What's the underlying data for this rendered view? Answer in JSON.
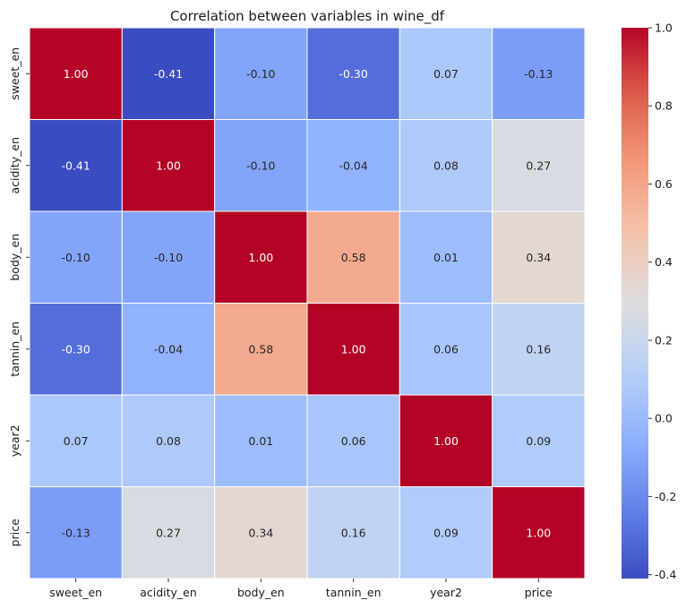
{
  "chart_data": {
    "type": "heatmap",
    "title": "Correlation between variables in wine_df",
    "xlabel": "",
    "ylabel": "",
    "x_categories": [
      "sweet_en",
      "acidity_en",
      "body_en",
      "tannin_en",
      "year2",
      "price"
    ],
    "y_categories": [
      "sweet_en",
      "acidity_en",
      "body_en",
      "tannin_en",
      "year2",
      "price"
    ],
    "values": [
      [
        1.0,
        -0.41,
        -0.1,
        -0.3,
        0.07,
        -0.13
      ],
      [
        -0.41,
        1.0,
        -0.1,
        -0.04,
        0.08,
        0.27
      ],
      [
        -0.1,
        -0.1,
        1.0,
        0.58,
        0.01,
        0.34
      ],
      [
        -0.3,
        -0.04,
        0.58,
        1.0,
        0.06,
        0.16
      ],
      [
        0.07,
        0.08,
        0.01,
        0.06,
        1.0,
        0.09
      ],
      [
        -0.13,
        0.27,
        0.34,
        0.16,
        0.09,
        1.0
      ]
    ],
    "annotation_format": "0.00",
    "colormap": "coolwarm",
    "vmin": -0.41,
    "vmax": 1.0,
    "colorbar_ticks": [
      -0.4,
      -0.2,
      0.0,
      0.2,
      0.4,
      0.6,
      0.8,
      1.0
    ],
    "colorbar_tick_labels": [
      "-0.4",
      "-0.2",
      "0.0",
      "0.2",
      "0.4",
      "0.6",
      "0.8",
      "1.0"
    ],
    "legend": "colorbar-right",
    "cell_border_color": "#ffffff"
  }
}
